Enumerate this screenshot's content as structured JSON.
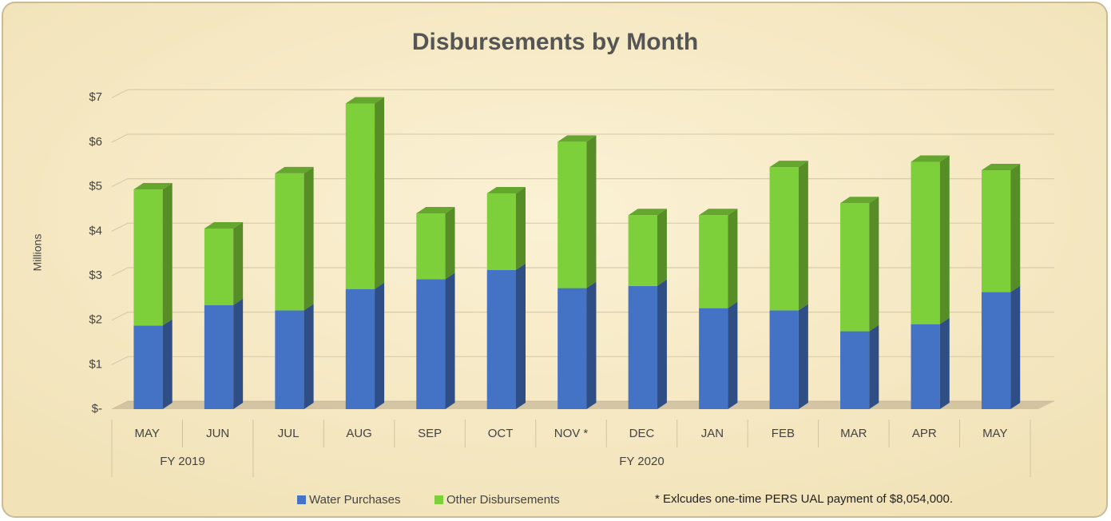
{
  "chart_data": {
    "type": "bar",
    "stacked": true,
    "title": "Disbursements by Month",
    "y_label": "Millions",
    "categories": [
      "MAY",
      "JUN",
      "JUL",
      "AUG",
      "SEP",
      "OCT",
      "NOV *",
      "DEC",
      "JAN",
      "FEB",
      "MAR",
      "APR",
      "MAY"
    ],
    "groups": [
      {
        "name": "FY 2019",
        "span": 2
      },
      {
        "name": "FY 2020",
        "span": 11
      }
    ],
    "series": [
      {
        "name": "Water Purchases",
        "color": "#4472c4",
        "values": [
          1.88,
          2.34,
          2.22,
          2.7,
          2.92,
          3.13,
          2.72,
          2.77,
          2.27,
          2.22,
          1.75,
          1.91,
          2.63
        ]
      },
      {
        "name": "Other Disbursements",
        "color": "#7ed03a",
        "values": [
          3.06,
          1.72,
          3.08,
          4.17,
          1.48,
          1.72,
          3.29,
          1.59,
          2.09,
          3.22,
          2.88,
          3.65,
          2.74
        ]
      }
    ],
    "ylim": [
      0,
      7.4
    ],
    "yticks": [
      {
        "value": 0,
        "label": "$-"
      },
      {
        "value": 1,
        "label": "$1"
      },
      {
        "value": 2,
        "label": "$2"
      },
      {
        "value": 3,
        "label": "$3"
      },
      {
        "value": 4,
        "label": "$4"
      },
      {
        "value": 5,
        "label": "$5"
      },
      {
        "value": 6,
        "label": "$6"
      },
      {
        "value": 7,
        "label": "$7"
      }
    ],
    "grid": true,
    "legend": "bottom",
    "annotation": "* Exlcudes one-time PERS UAL payment of $8,054,000."
  }
}
